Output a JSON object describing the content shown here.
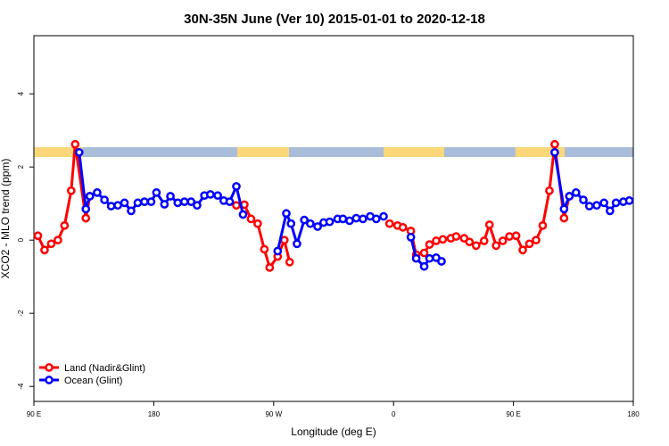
{
  "chart_data": {
    "type": "line",
    "title": "30N-35N June (Ver 10)   2015-01-01 to 2020-12-18",
    "x_label": "Longitude (deg E)",
    "y_label": "XCO2 - MLO trend (ppm)",
    "xlim": [
      90,
      540
    ],
    "xticks": [
      {
        "value": 90,
        "label": "90 E"
      },
      180,
      {
        "value": 270,
        "label": "90 W"
      },
      {
        "value": 360,
        "label": "0"
      },
      {
        "value": 450,
        "label": "90 E"
      },
      {
        "value": 540,
        "label": "180"
      }
    ],
    "ylim": [
      -4.41,
      5.59
    ],
    "yticks": [
      -4,
      -2,
      0,
      2,
      4
    ],
    "legend": "bottom-left",
    "series": [
      {
        "name": "Land (Nadir&Glint)",
        "color": "#ff0000",
        "x": [
          93,
          98,
          103,
          108,
          113,
          118,
          121,
          129,
          132,
          null,
          242,
          248,
          253,
          258,
          263,
          267,
          273,
          278,
          282,
          null,
          357,
          363,
          367,
          373,
          377,
          383,
          387,
          392,
          397,
          403,
          407,
          413,
          417,
          422,
          428,
          432,
          437,
          442,
          447,
          452,
          457,
          462,
          467,
          472,
          477,
          481,
          488,
          492
        ],
        "values": [
          0.12,
          -0.27,
          -0.1,
          0,
          0.4,
          1.35,
          2.62,
          0.6,
          1.2,
          null,
          0.95,
          0.97,
          0.58,
          0.45,
          -0.25,
          -0.75,
          -0.45,
          0,
          -0.6,
          null,
          0.45,
          0.4,
          0.35,
          0.25,
          -0.4,
          -0.35,
          -0.12,
          -0.02,
          0.02,
          0.05,
          0.1,
          0.05,
          -0.05,
          -0.15,
          -0.02,
          0.42,
          -0.15,
          -0.02,
          0.1,
          0.12,
          -0.27,
          -0.1,
          0,
          0.4,
          1.35,
          2.62,
          0.6,
          1.2
        ]
      },
      {
        "name": "Ocean (Glint)",
        "color": "#0000ff",
        "x": [
          124,
          129,
          132,
          137.5,
          143,
          148,
          153,
          158,
          163,
          168,
          173,
          178,
          182,
          188,
          192.5,
          198,
          203,
          208,
          212.5,
          218,
          222.5,
          228,
          232.5,
          237,
          242,
          247,
          null,
          273,
          279.5,
          283,
          287.5,
          293,
          297.5,
          303,
          307.5,
          312,
          318,
          322,
          327,
          332,
          337,
          342.5,
          347,
          352.5,
          null,
          373,
          377,
          383,
          387,
          392,
          396,
          null,
          481,
          488,
          492,
          497,
          502.5,
          507,
          512.5,
          518,
          522.5,
          527,
          532.5,
          537
        ],
        "values": [
          2.4,
          0.85,
          1.2,
          1.3,
          1.1,
          0.93,
          0.95,
          1.02,
          0.8,
          1.02,
          1.05,
          1.05,
          1.3,
          0.98,
          1.2,
          1.02,
          1.05,
          1.05,
          0.95,
          1.22,
          1.25,
          1.22,
          1.08,
          1.05,
          1.47,
          0.7,
          null,
          -0.3,
          0.73,
          0.45,
          -0.1,
          0.55,
          0.45,
          0.37,
          0.48,
          0.5,
          0.58,
          0.58,
          0.53,
          0.6,
          0.58,
          0.65,
          0.58,
          0.65,
          null,
          0.08,
          -0.5,
          -0.72,
          -0.5,
          -0.48,
          -0.58,
          null,
          2.4,
          0.85,
          1.2,
          1.3,
          1.1,
          0.93,
          0.95,
          1.02,
          0.8,
          1.02,
          1.05,
          1.08
        ]
      }
    ]
  }
}
